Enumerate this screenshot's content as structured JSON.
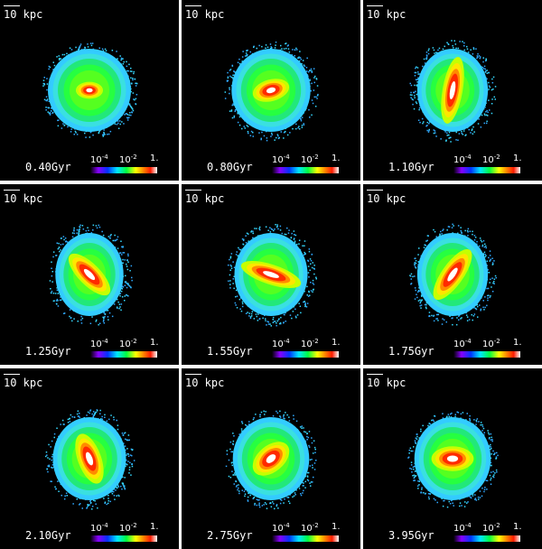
{
  "colorbar": {
    "low": "10",
    "low_exp": "-4",
    "mid": "10",
    "mid_exp": "-2",
    "high": "1."
  },
  "colormap": [
    "#000000",
    "#8800ff",
    "#0033ff",
    "#00e5ff",
    "#00ff40",
    "#ffff00",
    "#ff7f00",
    "#ff1a00",
    "#ffffff"
  ],
  "panels": [
    {
      "scale": "10 kpc",
      "time": "0.40Gyr",
      "aspect": 1.0,
      "angle": 0,
      "bar_len": 0.05,
      "bar_w": 0.05,
      "irregular": 0.05
    },
    {
      "scale": "10 kpc",
      "time": "0.80Gyr",
      "aspect": 0.95,
      "angle": -15,
      "bar_len": 0.18,
      "bar_w": 0.08,
      "irregular": 0.25
    },
    {
      "scale": "10 kpc",
      "time": "1.10Gyr",
      "aspect": 0.85,
      "angle": -80,
      "bar_len": 0.42,
      "bar_w": 0.07,
      "irregular": 0.35
    },
    {
      "scale": "10 kpc",
      "time": "1.25Gyr",
      "aspect": 0.82,
      "angle": 45,
      "bar_len": 0.32,
      "bar_w": 0.08,
      "irregular": 0.4
    },
    {
      "scale": "10 kpc",
      "time": "1.55Gyr",
      "aspect": 0.88,
      "angle": 18,
      "bar_len": 0.38,
      "bar_w": 0.07,
      "irregular": 0.35
    },
    {
      "scale": "10 kpc",
      "time": "1.75Gyr",
      "aspect": 0.85,
      "angle": -55,
      "bar_len": 0.36,
      "bar_w": 0.08,
      "irregular": 0.35
    },
    {
      "scale": "10 kpc",
      "time": "2.10Gyr",
      "aspect": 0.88,
      "angle": 70,
      "bar_len": 0.3,
      "bar_w": 0.09,
      "irregular": 0.3
    },
    {
      "scale": "10 kpc",
      "time": "2.75Gyr",
      "aspect": 0.92,
      "angle": -40,
      "bar_len": 0.22,
      "bar_w": 0.11,
      "irregular": 0.25
    },
    {
      "scale": "10 kpc",
      "time": "3.95Gyr",
      "aspect": 0.92,
      "angle": 0,
      "bar_len": 0.22,
      "bar_w": 0.1,
      "irregular": 0.15
    }
  ]
}
